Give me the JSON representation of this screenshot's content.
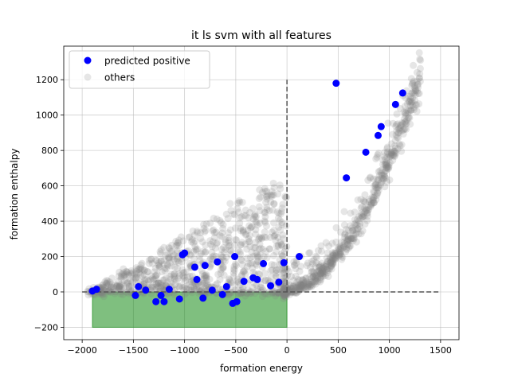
{
  "chart_data": {
    "type": "scatter",
    "title": "it ls svm with all features",
    "xlabel": "formation energy",
    "ylabel": "formation enthalpy",
    "xlim": [
      -2180,
      1680
    ],
    "ylim": [
      -270,
      1390
    ],
    "xticks": [
      -2000,
      -1500,
      -1000,
      -500,
      0,
      500,
      1000,
      1500
    ],
    "xtick_labels": [
      "−2000",
      "−1500",
      "−1000",
      "−500",
      "0",
      "500",
      "1000",
      "1500"
    ],
    "yticks": [
      -200,
      0,
      200,
      400,
      600,
      800,
      1000,
      1200
    ],
    "ytick_labels": [
      "−200",
      "0",
      "200",
      "400",
      "600",
      "800",
      "1000",
      "1200"
    ],
    "grid": true,
    "legend_position": "top-left",
    "region": {
      "x": [
        -1900,
        0
      ],
      "y": [
        -200,
        0
      ],
      "color": "#008000",
      "alpha": 0.5
    },
    "reference_lines": [
      {
        "orientation": "horizontal",
        "y": 0,
        "x_range": [
          -2000,
          1500
        ],
        "style": "dashed",
        "color": "#555555"
      },
      {
        "orientation": "vertical",
        "x": 0,
        "y_range": [
          0,
          1200
        ],
        "style": "dashed",
        "color": "#555555"
      }
    ],
    "series": [
      {
        "name": "predicted positive",
        "color": "#0000ff",
        "points": [
          [
            -1900,
            5
          ],
          [
            -1860,
            15
          ],
          [
            -1480,
            -20
          ],
          [
            -1450,
            30
          ],
          [
            -1380,
            10
          ],
          [
            -1280,
            -55
          ],
          [
            -1230,
            -20
          ],
          [
            -1200,
            -55
          ],
          [
            -1150,
            15
          ],
          [
            -1050,
            -40
          ],
          [
            -1020,
            210
          ],
          [
            -1000,
            220
          ],
          [
            -900,
            140
          ],
          [
            -880,
            70
          ],
          [
            -820,
            -35
          ],
          [
            -800,
            150
          ],
          [
            -730,
            10
          ],
          [
            -680,
            170
          ],
          [
            -630,
            -15
          ],
          [
            -590,
            30
          ],
          [
            -530,
            -65
          ],
          [
            -510,
            200
          ],
          [
            -490,
            -55
          ],
          [
            -420,
            60
          ],
          [
            -330,
            80
          ],
          [
            -290,
            70
          ],
          [
            -230,
            160
          ],
          [
            -160,
            35
          ],
          [
            -80,
            55
          ],
          [
            -30,
            165
          ],
          [
            120,
            200
          ],
          [
            480,
            1180
          ],
          [
            580,
            645
          ],
          [
            770,
            790
          ],
          [
            890,
            885
          ],
          [
            920,
            935
          ],
          [
            1060,
            1060
          ],
          [
            1130,
            1125
          ]
        ]
      },
      {
        "name": "others",
        "color": "#808080",
        "alpha": 0.2,
        "points": []
      }
    ]
  }
}
